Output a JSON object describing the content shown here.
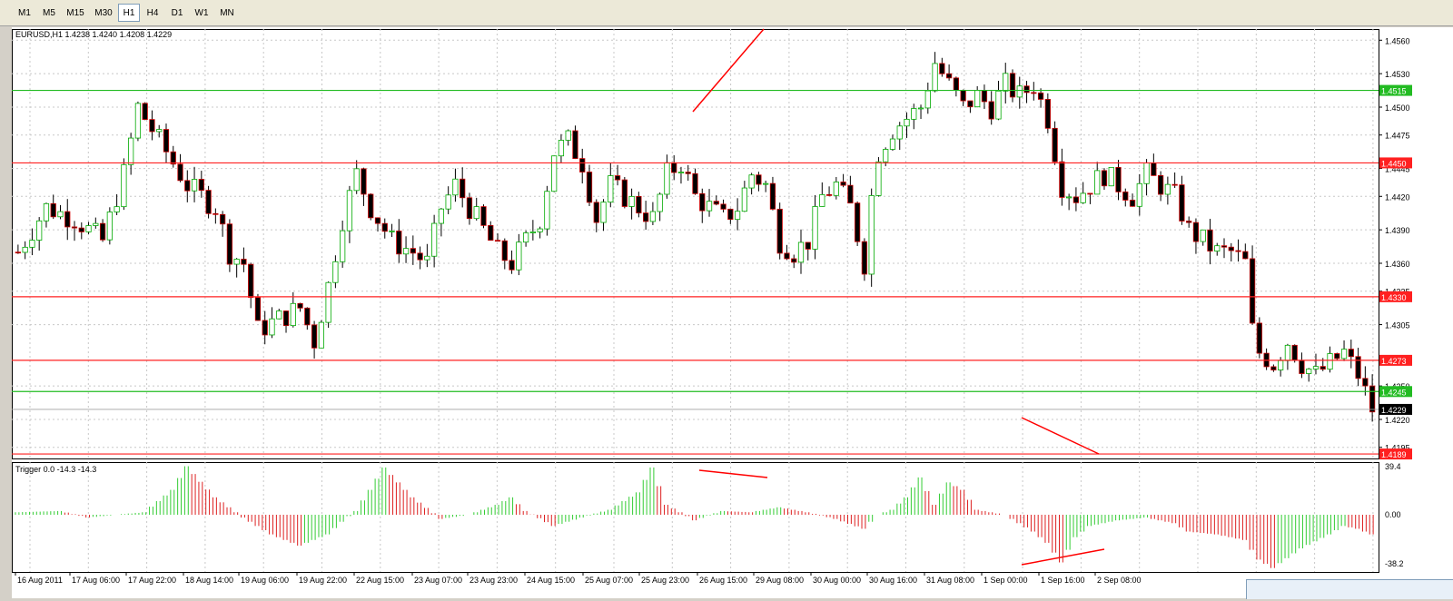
{
  "toolbar": {
    "timeframes": [
      "M1",
      "M5",
      "M15",
      "M30",
      "H1",
      "H4",
      "D1",
      "W1",
      "MN"
    ],
    "active": "H1"
  },
  "main_chart": {
    "title": "EURUSD,H1  1.4238 1.4240 1.4208 1.4229",
    "price_ticks": [
      "1.4560",
      "1.4530",
      "1.4500",
      "1.4475",
      "1.4445",
      "1.4420",
      "1.4390",
      "1.4360",
      "1.4335",
      "1.4305",
      "1.4250",
      "1.4220",
      "1.4195"
    ],
    "level_lines": [
      {
        "price": 1.4515,
        "label": "1.4515",
        "color": "#22bb22"
      },
      {
        "price": 1.445,
        "label": "1.4450",
        "color": "#ff2020"
      },
      {
        "price": 1.433,
        "label": "1.4330",
        "color": "#ff2020"
      },
      {
        "price": 1.4273,
        "label": "1.4273",
        "color": "#ff2020"
      },
      {
        "price": 1.4245,
        "label": "1.4245",
        "color": "#22bb22"
      },
      {
        "price": 1.4189,
        "label": "1.4189",
        "color": "#ff2020"
      }
    ],
    "current_price": {
      "price": 1.4229,
      "label": "1.4229",
      "color": "#000000"
    },
    "bull_color": "#00aa00",
    "bear_color": "#cc0000"
  },
  "indicator": {
    "title": "Trigger 0.0 -14.3 -14.3",
    "ticks": [
      "39.4",
      "0.00",
      "-38.2"
    ],
    "pos_color": "#33cc33",
    "neg_color": "#dd2020"
  },
  "time_axis": [
    "16 Aug 2011",
    "17 Aug 06:00",
    "17 Aug 22:00",
    "18 Aug 14:00",
    "19 Aug 06:00",
    "19 Aug 22:00",
    "22 Aug 15:00",
    "23 Aug 07:00",
    "23 Aug 23:00",
    "24 Aug 15:00",
    "25 Aug 07:00",
    "25 Aug 23:00",
    "26 Aug 15:00",
    "29 Aug 08:00",
    "30 Aug 00:00",
    "30 Aug 16:00",
    "31 Aug 08:00",
    "1 Sep 00:00",
    "1 Sep 16:00",
    "2 Sep 08:00"
  ],
  "chart_data": {
    "type": "candlestick",
    "symbol": "EURUSD",
    "timeframe": "H1",
    "ylim": [
      1.4185,
      1.457
    ],
    "close_path": [
      [
        0,
        1.437
      ],
      [
        4,
        1.441
      ],
      [
        8,
        1.44
      ],
      [
        12,
        1.438
      ],
      [
        15,
        1.444
      ],
      [
        17,
        1.45
      ],
      [
        20,
        1.447
      ],
      [
        24,
        1.443
      ],
      [
        28,
        1.441
      ],
      [
        30,
        1.437
      ],
      [
        32,
        1.436
      ],
      [
        34,
        1.43
      ],
      [
        37,
        1.431
      ],
      [
        40,
        1.432
      ],
      [
        42,
        1.429
      ],
      [
        44,
        1.434
      ],
      [
        46,
        1.44
      ],
      [
        48,
        1.444
      ],
      [
        50,
        1.441
      ],
      [
        53,
        1.438
      ],
      [
        56,
        1.437
      ],
      [
        58,
        1.436
      ],
      [
        60,
        1.441
      ],
      [
        62,
        1.443
      ],
      [
        65,
        1.44
      ],
      [
        68,
        1.437
      ],
      [
        70,
        1.436
      ],
      [
        72,
        1.438
      ],
      [
        74,
        1.44
      ],
      [
        76,
        1.446
      ],
      [
        78,
        1.447
      ],
      [
        80,
        1.445
      ],
      [
        82,
        1.44
      ],
      [
        84,
        1.443
      ],
      [
        86,
        1.442
      ],
      [
        88,
        1.441
      ],
      [
        90,
        1.44
      ],
      [
        92,
        1.444
      ],
      [
        94,
        1.445
      ],
      [
        96,
        1.442
      ],
      [
        98,
        1.441
      ],
      [
        100,
        1.44
      ],
      [
        102,
        1.441
      ],
      [
        104,
        1.444
      ],
      [
        106,
        1.443
      ],
      [
        108,
        1.438
      ],
      [
        110,
        1.437
      ],
      [
        112,
        1.438
      ],
      [
        114,
        1.442
      ],
      [
        116,
        1.443
      ],
      [
        118,
        1.441
      ],
      [
        120,
        1.436
      ],
      [
        121,
        1.442
      ],
      [
        122,
        1.446
      ],
      [
        124,
        1.448
      ],
      [
        126,
        1.449
      ],
      [
        128,
        1.45
      ],
      [
        130,
        1.454
      ],
      [
        132,
        1.452
      ],
      [
        134,
        1.45
      ],
      [
        136,
        1.451
      ],
      [
        138,
        1.45
      ],
      [
        140,
        1.452
      ],
      [
        142,
        1.451
      ],
      [
        144,
        1.452
      ],
      [
        146,
        1.449
      ],
      [
        148,
        1.443
      ],
      [
        150,
        1.442
      ],
      [
        152,
        1.443
      ],
      [
        154,
        1.444
      ],
      [
        156,
        1.443
      ],
      [
        158,
        1.442
      ],
      [
        160,
        1.444
      ],
      [
        162,
        1.443
      ],
      [
        164,
        1.442
      ],
      [
        166,
        1.439
      ],
      [
        168,
        1.438
      ],
      [
        170,
        1.437
      ],
      [
        172,
        1.437
      ],
      [
        174,
        1.436
      ],
      [
        175,
        1.43
      ],
      [
        176,
        1.428
      ],
      [
        178,
        1.427
      ],
      [
        180,
        1.429
      ],
      [
        182,
        1.427
      ],
      [
        184,
        1.426
      ],
      [
        186,
        1.427
      ],
      [
        188,
        1.428
      ],
      [
        190,
        1.426
      ],
      [
        192,
        1.4229
      ]
    ]
  }
}
